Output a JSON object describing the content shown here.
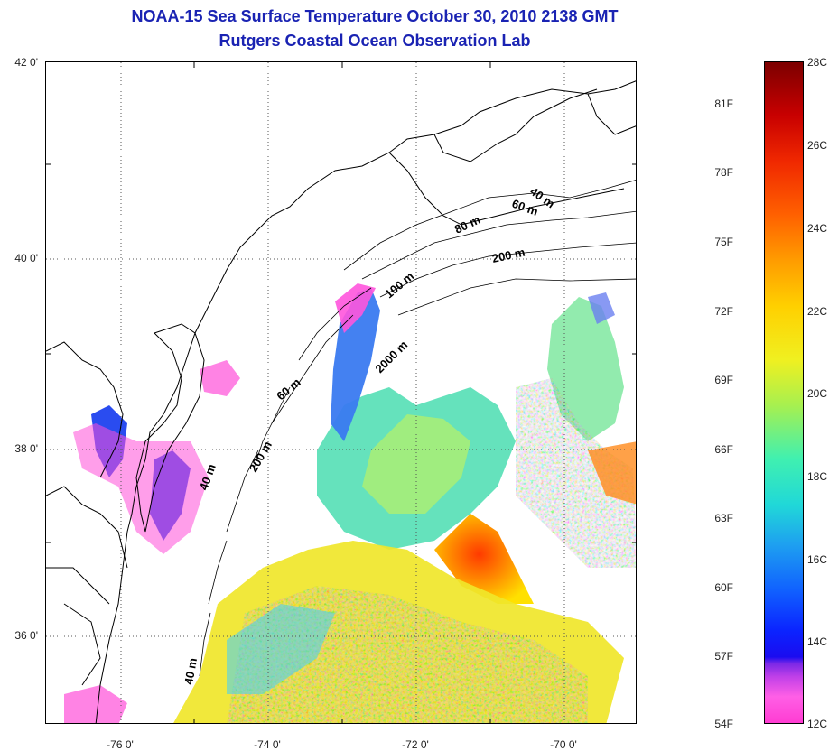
{
  "title_line1": "NOAA-15 Sea Surface Temperature October 30, 2010 2138 GMT",
  "title_line2": "Rutgers Coastal Ocean Observation Lab",
  "lat_labels": [
    "42 0'",
    "40 0'",
    "38 0'",
    "36 0'"
  ],
  "lon_labels": [
    "-76 0'",
    "-74 0'",
    "-72 0'",
    "-70 0'"
  ],
  "contour_labels": [
    "40 m",
    "60 m",
    "80 m",
    "200 m",
    "100 m",
    "2000 m",
    "60 m",
    "200 m",
    "40 m",
    "40 m"
  ],
  "colorbar": {
    "fahrenheit": [
      "81F",
      "78F",
      "75F",
      "72F",
      "69F",
      "66F",
      "63F",
      "60F",
      "57F",
      "54F"
    ],
    "celsius": [
      "28C",
      "26C",
      "24C",
      "22C",
      "20C",
      "18C",
      "16C",
      "14C",
      "12C"
    ]
  },
  "colors": {
    "title": "#1a23b3",
    "gridline": "#555555",
    "coastline": "#000000"
  }
}
